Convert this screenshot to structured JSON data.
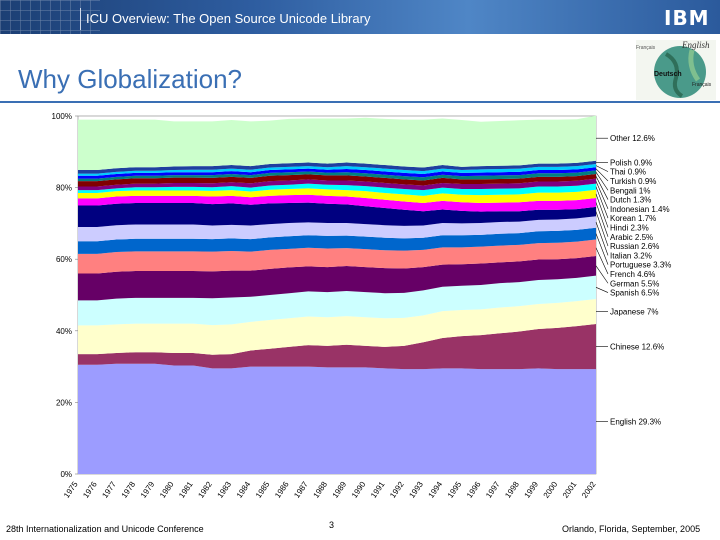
{
  "header": {
    "title": "ICU Overview: The Open Source Unicode Library",
    "logo_text": "IBM"
  },
  "slide": {
    "title": "Why Globalization?"
  },
  "globe": {
    "labels": [
      "English",
      "Deutsch",
      "Français",
      "Français"
    ]
  },
  "footer": {
    "left": "28th Internationalization and Unicode Conference",
    "page": "3",
    "right": "Orlando, Florida, September, 2005"
  },
  "chart_data": {
    "type": "area",
    "stacked": true,
    "y_tick_labels": [
      "0%",
      "20%",
      "40%",
      "60%",
      "80%",
      "100%"
    ],
    "ylim": [
      0,
      100
    ],
    "x": [
      "1975",
      "1976",
      "1977",
      "1978",
      "1979",
      "1980",
      "1981",
      "1982",
      "1983",
      "1984",
      "1985",
      "1986",
      "1987",
      "1988",
      "1989",
      "1990",
      "1991",
      "1992",
      "1993",
      "1994",
      "1995",
      "1996",
      "1997",
      "1998",
      "1999",
      "2000",
      "2001",
      "2002"
    ],
    "series": [
      {
        "name": "English",
        "label": "English 29.3%",
        "color": "#9c9cff",
        "values": [
          30.5,
          30.5,
          30.8,
          30.8,
          30.8,
          30.3,
          30.3,
          29.5,
          29.5,
          30.0,
          30.0,
          30.0,
          30.0,
          29.8,
          29.8,
          29.8,
          29.5,
          29.3,
          29.3,
          29.5,
          29.5,
          29.3,
          29.3,
          29.3,
          29.5,
          29.3,
          29.3,
          29.3
        ]
      },
      {
        "name": "Chinese",
        "label": "Chinese 12.6%",
        "color": "#993366",
        "values": [
          3.0,
          3.0,
          3.0,
          3.2,
          3.2,
          3.5,
          3.5,
          3.8,
          4.0,
          4.5,
          5.0,
          5.5,
          6.0,
          6.0,
          6.3,
          6.0,
          6.0,
          6.5,
          7.5,
          8.5,
          9.0,
          9.5,
          10.0,
          10.5,
          11.0,
          11.5,
          12.0,
          12.6
        ]
      },
      {
        "name": "Japanese",
        "label": "Japanese 7%",
        "color": "#ffffcc",
        "values": [
          8.0,
          8.0,
          8.0,
          8.0,
          8.0,
          8.2,
          8.2,
          8.3,
          8.3,
          8.0,
          8.0,
          8.0,
          8.0,
          8.0,
          8.0,
          8.0,
          8.0,
          7.8,
          7.5,
          7.5,
          7.3,
          7.2,
          7.2,
          7.1,
          7.0,
          7.0,
          7.0,
          7.0
        ]
      },
      {
        "name": "Spanish",
        "label": "Spanish 6.5%",
        "color": "#ccffff",
        "values": [
          7.0,
          7.0,
          7.2,
          7.2,
          7.2,
          7.2,
          7.2,
          7.5,
          7.5,
          7.0,
          7.0,
          7.0,
          7.0,
          7.0,
          7.0,
          7.0,
          7.0,
          7.0,
          7.0,
          6.8,
          6.8,
          6.8,
          6.8,
          6.7,
          6.7,
          6.6,
          6.5,
          6.5
        ]
      },
      {
        "name": "German",
        "label": "German 5.5%",
        "color": "#660066",
        "values": [
          7.5,
          7.5,
          7.5,
          7.5,
          7.5,
          7.5,
          7.5,
          7.5,
          7.5,
          7.3,
          7.3,
          7.2,
          7.0,
          7.0,
          7.0,
          7.0,
          7.0,
          6.8,
          6.5,
          6.2,
          6.0,
          6.0,
          5.8,
          5.8,
          5.7,
          5.6,
          5.5,
          5.5
        ]
      },
      {
        "name": "French",
        "label": "French 4.6%",
        "color": "#ff8080",
        "values": [
          5.5,
          5.5,
          5.5,
          5.5,
          5.5,
          5.5,
          5.5,
          5.5,
          5.5,
          5.3,
          5.3,
          5.2,
          5.2,
          5.2,
          5.0,
          5.0,
          5.0,
          5.0,
          4.8,
          4.8,
          4.7,
          4.7,
          4.7,
          4.6,
          4.6,
          4.6,
          4.6,
          4.6
        ]
      },
      {
        "name": "Portuguese",
        "label": "Portuguese 3.3%",
        "color": "#0066cc",
        "values": [
          3.5,
          3.5,
          3.5,
          3.5,
          3.5,
          3.5,
          3.5,
          3.5,
          3.5,
          3.5,
          3.5,
          3.5,
          3.5,
          3.5,
          3.5,
          3.5,
          3.5,
          3.4,
          3.4,
          3.4,
          3.4,
          3.3,
          3.3,
          3.3,
          3.3,
          3.3,
          3.3,
          3.3
        ]
      },
      {
        "name": "Italian",
        "label": "Italian 3.2%",
        "color": "#ccccff",
        "values": [
          4.0,
          4.0,
          4.0,
          4.0,
          4.0,
          4.0,
          4.0,
          3.8,
          3.8,
          3.8,
          3.7,
          3.7,
          3.6,
          3.6,
          3.5,
          3.5,
          3.5,
          3.5,
          3.4,
          3.4,
          3.3,
          3.3,
          3.3,
          3.2,
          3.2,
          3.2,
          3.2,
          3.2
        ]
      },
      {
        "name": "Russian",
        "label": "Russian 2.6%",
        "color": "#000080",
        "values": [
          6.0,
          6.0,
          6.0,
          6.0,
          6.0,
          6.0,
          6.0,
          6.0,
          6.0,
          5.8,
          5.8,
          5.6,
          5.5,
          5.4,
          5.2,
          5.0,
          4.8,
          4.5,
          4.0,
          3.8,
          3.5,
          3.2,
          3.0,
          2.9,
          2.8,
          2.7,
          2.6,
          2.6
        ]
      },
      {
        "name": "Arabic",
        "label": "Arabic 2.5%",
        "color": "#ff00ff",
        "values": [
          2.0,
          2.0,
          2.0,
          2.0,
          2.0,
          2.0,
          2.0,
          2.1,
          2.1,
          2.1,
          2.1,
          2.2,
          2.2,
          2.2,
          2.2,
          2.3,
          2.3,
          2.3,
          2.3,
          2.4,
          2.4,
          2.4,
          2.4,
          2.5,
          2.5,
          2.5,
          2.5,
          2.5
        ]
      },
      {
        "name": "Hindi",
        "label": "Hindi 2.3%",
        "color": "#ffff00",
        "values": [
          1.5,
          1.5,
          1.5,
          1.5,
          1.5,
          1.5,
          1.5,
          1.6,
          1.6,
          1.6,
          1.7,
          1.7,
          1.8,
          1.8,
          1.8,
          1.9,
          1.9,
          2.0,
          2.0,
          2.1,
          2.1,
          2.2,
          2.2,
          2.2,
          2.3,
          2.3,
          2.3,
          2.3
        ]
      },
      {
        "name": "Korean",
        "label": "Korean 1.7%",
        "color": "#00ffff",
        "values": [
          0.8,
          0.8,
          0.8,
          0.9,
          0.9,
          1.0,
          1.0,
          1.0,
          1.1,
          1.1,
          1.2,
          1.2,
          1.3,
          1.3,
          1.4,
          1.4,
          1.5,
          1.5,
          1.6,
          1.6,
          1.6,
          1.7,
          1.7,
          1.7,
          1.7,
          1.7,
          1.7,
          1.7
        ]
      },
      {
        "name": "Indonesian",
        "label": "Indonesian 1.4%",
        "color": "#800080",
        "values": [
          1.0,
          1.0,
          1.0,
          1.0,
          1.0,
          1.1,
          1.1,
          1.1,
          1.1,
          1.2,
          1.2,
          1.2,
          1.2,
          1.2,
          1.3,
          1.3,
          1.3,
          1.3,
          1.3,
          1.3,
          1.4,
          1.4,
          1.4,
          1.4,
          1.4,
          1.4,
          1.4,
          1.4
        ]
      },
      {
        "name": "Dutch",
        "label": "Dutch 1.3%",
        "color": "#800000",
        "values": [
          1.5,
          1.5,
          1.5,
          1.5,
          1.5,
          1.5,
          1.5,
          1.5,
          1.5,
          1.5,
          1.5,
          1.5,
          1.4,
          1.4,
          1.4,
          1.4,
          1.4,
          1.4,
          1.4,
          1.4,
          1.3,
          1.3,
          1.3,
          1.3,
          1.3,
          1.3,
          1.3,
          1.3
        ]
      },
      {
        "name": "Bengali",
        "label": "Bengali 1%",
        "color": "#008080",
        "values": [
          0.7,
          0.7,
          0.7,
          0.7,
          0.7,
          0.7,
          0.7,
          0.8,
          0.8,
          0.8,
          0.8,
          0.8,
          0.8,
          0.8,
          0.9,
          0.9,
          0.9,
          0.9,
          0.9,
          0.9,
          0.9,
          1.0,
          1.0,
          1.0,
          1.0,
          1.0,
          1.0,
          1.0
        ]
      },
      {
        "name": "Turkish",
        "label": "Turkish 0.9%",
        "color": "#0000ff",
        "values": [
          0.8,
          0.8,
          0.8,
          0.8,
          0.8,
          0.8,
          0.8,
          0.8,
          0.8,
          0.8,
          0.8,
          0.8,
          0.8,
          0.8,
          0.9,
          0.9,
          0.9,
          0.9,
          0.9,
          0.9,
          0.9,
          0.9,
          0.9,
          0.9,
          0.9,
          0.9,
          0.9,
          0.9
        ]
      },
      {
        "name": "Thai",
        "label": "Thai 0.9%",
        "color": "#00ccff",
        "values": [
          0.6,
          0.6,
          0.6,
          0.6,
          0.6,
          0.6,
          0.7,
          0.7,
          0.7,
          0.7,
          0.7,
          0.7,
          0.7,
          0.7,
          0.8,
          0.8,
          0.8,
          0.8,
          0.8,
          0.8,
          0.8,
          0.9,
          0.9,
          0.9,
          0.9,
          0.9,
          0.9,
          0.9
        ]
      },
      {
        "name": "Polish",
        "label": "Polish 0.9%",
        "color": "#1f3f9f",
        "values": [
          1.0,
          1.0,
          1.0,
          1.0,
          1.0,
          1.0,
          1.0,
          1.0,
          1.0,
          1.0,
          1.0,
          1.0,
          1.0,
          1.0,
          1.0,
          1.0,
          1.0,
          1.0,
          1.0,
          1.0,
          0.9,
          0.9,
          0.9,
          0.9,
          0.9,
          0.9,
          0.9,
          0.9
        ]
      },
      {
        "name": "Other",
        "label": "Other 12.6%",
        "color": "#ccffcc",
        "values": [
          14.1,
          14.1,
          13.6,
          13.3,
          13.3,
          12.6,
          12.5,
          12.5,
          12.6,
          12.5,
          12.1,
          12.4,
          12.3,
          12.6,
          12.3,
          12.8,
          12.9,
          13.1,
          13.4,
          13.0,
          13.1,
          12.4,
          12.5,
          12.6,
          12.3,
          12.3,
          12.2,
          12.6
        ]
      }
    ]
  }
}
